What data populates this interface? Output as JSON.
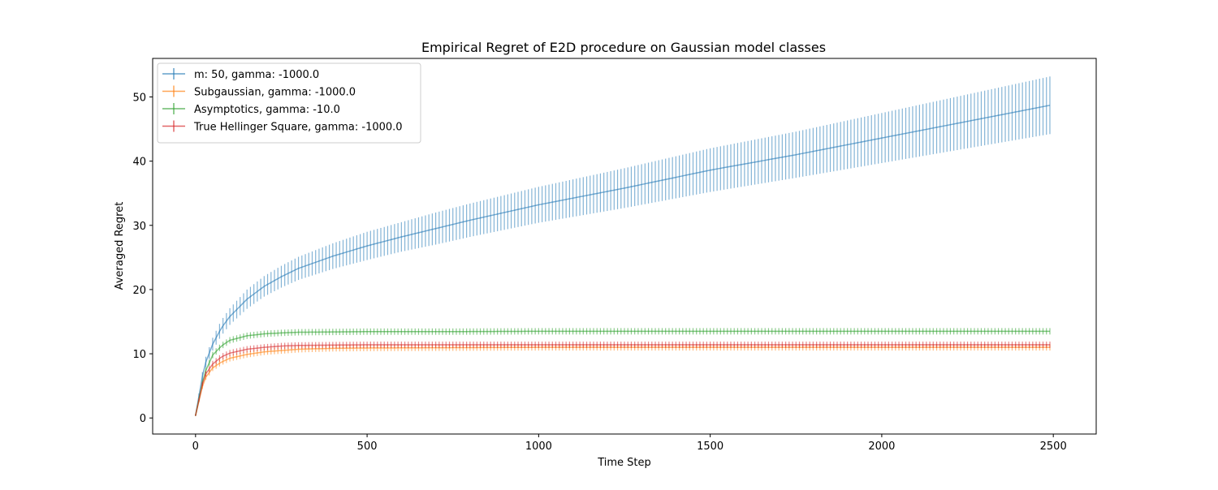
{
  "chart_data": {
    "type": "line",
    "title": "Empirical Regret of E2D procedure on Gaussian model classes",
    "xlabel": "Time Step",
    "ylabel": "Averaged Regret",
    "xlim": [
      -125,
      2625
    ],
    "ylim": [
      -2.5,
      56
    ],
    "xticks": [
      0,
      500,
      1000,
      1500,
      2000,
      2500
    ],
    "yticks": [
      0,
      10,
      20,
      30,
      40,
      50
    ],
    "grid": false,
    "legend_position": "top-left",
    "error_bars": true,
    "series": [
      {
        "name": "m: 50, gamma: -1000.0",
        "color": "#1f77b4",
        "x": [
          0,
          25,
          50,
          75,
          100,
          150,
          200,
          250,
          300,
          400,
          500,
          600,
          700,
          800,
          900,
          1000,
          1250,
          1500,
          1750,
          2000,
          2250,
          2500
        ],
        "y": [
          0.4,
          8.0,
          11.5,
          14.0,
          15.8,
          18.5,
          20.5,
          22.0,
          23.3,
          25.2,
          26.8,
          28.2,
          29.5,
          30.8,
          32.0,
          33.2,
          35.8,
          38.6,
          41.0,
          43.6,
          46.2,
          48.8
        ],
        "err": [
          0.1,
          0.8,
          1.0,
          1.2,
          1.3,
          1.5,
          1.6,
          1.7,
          1.8,
          2.0,
          2.2,
          2.3,
          2.5,
          2.6,
          2.7,
          2.8,
          3.1,
          3.4,
          3.6,
          3.9,
          4.2,
          4.5
        ]
      },
      {
        "name": "Subgaussian, gamma: -1000.0",
        "color": "#ff7f0e",
        "x": [
          0,
          25,
          50,
          75,
          100,
          150,
          200,
          250,
          300,
          400,
          500,
          750,
          1000,
          1500,
          2000,
          2500
        ],
        "y": [
          0.4,
          6.0,
          7.8,
          8.7,
          9.3,
          9.9,
          10.3,
          10.5,
          10.7,
          10.85,
          10.9,
          10.95,
          11.0,
          11.0,
          11.0,
          11.0
        ],
        "err": [
          0.1,
          0.4,
          0.5,
          0.5,
          0.5,
          0.5,
          0.5,
          0.5,
          0.5,
          0.5,
          0.5,
          0.5,
          0.5,
          0.5,
          0.5,
          0.5
        ]
      },
      {
        "name": "Asymptotics, gamma: -10.0",
        "color": "#2ca02c",
        "x": [
          0,
          25,
          50,
          75,
          100,
          150,
          200,
          250,
          300,
          400,
          500,
          750,
          1000,
          1500,
          2000,
          2500
        ],
        "y": [
          0.4,
          6.8,
          9.8,
          11.2,
          12.1,
          12.8,
          13.1,
          13.25,
          13.35,
          13.4,
          13.45,
          13.45,
          13.5,
          13.5,
          13.5,
          13.5
        ],
        "err": [
          0.1,
          0.4,
          0.5,
          0.5,
          0.5,
          0.5,
          0.5,
          0.5,
          0.5,
          0.5,
          0.5,
          0.5,
          0.5,
          0.5,
          0.5,
          0.5
        ]
      },
      {
        "name": "True Hellinger Square, gamma: -1000.0",
        "color": "#d62728",
        "x": [
          0,
          25,
          50,
          75,
          100,
          150,
          200,
          250,
          300,
          400,
          500,
          750,
          1000,
          1500,
          2000,
          2500
        ],
        "y": [
          0.4,
          6.5,
          8.4,
          9.5,
          10.1,
          10.7,
          11.0,
          11.2,
          11.3,
          11.35,
          11.4,
          11.4,
          11.4,
          11.4,
          11.4,
          11.4
        ],
        "err": [
          0.1,
          0.4,
          0.5,
          0.5,
          0.5,
          0.5,
          0.5,
          0.5,
          0.5,
          0.5,
          0.5,
          0.5,
          0.5,
          0.5,
          0.5,
          0.5
        ]
      }
    ]
  }
}
